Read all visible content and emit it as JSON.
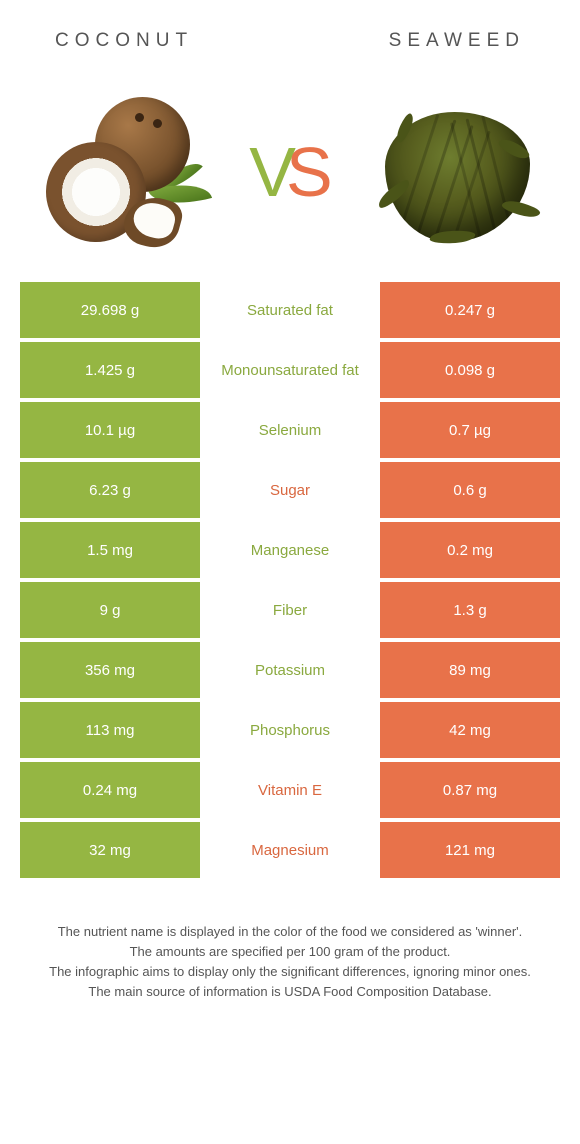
{
  "colors": {
    "left": "#95b643",
    "right": "#e8724a",
    "left_text": "#8aa93f",
    "right_text": "#d9673f",
    "body_text": "#555555"
  },
  "header": {
    "left_title": "Coconut",
    "right_title": "Seaweed"
  },
  "vs": {
    "v": "V",
    "s": "S"
  },
  "rows": [
    {
      "left": "29.698 g",
      "label": "Saturated fat",
      "right": "0.247 g",
      "winner": "left"
    },
    {
      "left": "1.425 g",
      "label": "Monounsaturated fat",
      "right": "0.098 g",
      "winner": "left"
    },
    {
      "left": "10.1 µg",
      "label": "Selenium",
      "right": "0.7 µg",
      "winner": "left"
    },
    {
      "left": "6.23 g",
      "label": "Sugar",
      "right": "0.6 g",
      "winner": "right"
    },
    {
      "left": "1.5 mg",
      "label": "Manganese",
      "right": "0.2 mg",
      "winner": "left"
    },
    {
      "left": "9 g",
      "label": "Fiber",
      "right": "1.3 g",
      "winner": "left"
    },
    {
      "left": "356 mg",
      "label": "Potassium",
      "right": "89 mg",
      "winner": "left"
    },
    {
      "left": "113 mg",
      "label": "Phosphorus",
      "right": "42 mg",
      "winner": "left"
    },
    {
      "left": "0.24 mg",
      "label": "Vitamin E",
      "right": "0.87 mg",
      "winner": "right"
    },
    {
      "left": "32 mg",
      "label": "Magnesium",
      "right": "121 mg",
      "winner": "right"
    }
  ],
  "footnote": {
    "l1": "The nutrient name is displayed in the color of the food we considered as 'winner'.",
    "l2": "The amounts are specified per 100 gram of the product.",
    "l3": "The infographic aims to display only the significant differences, ignoring minor ones.",
    "l4": "The main source of information is USDA Food Composition Database."
  }
}
